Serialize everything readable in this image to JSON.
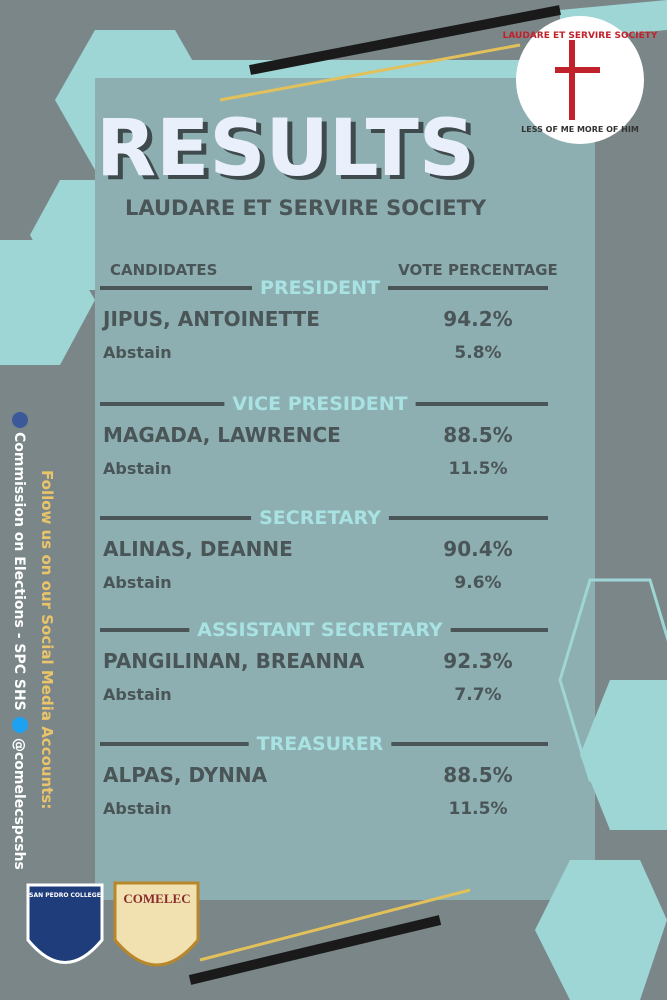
{
  "header": {
    "title": "RESULTS",
    "subtitle": "LAUDARE ET SERVIRE SOCIETY"
  },
  "table": {
    "columns": [
      "CANDIDATES",
      "VOTE PERCENTAGE"
    ],
    "positions": [
      {
        "title": "PRESIDENT",
        "rows": [
          [
            "JIPUS, ANTOINETTE",
            "94.2%"
          ],
          [
            "Abstain",
            "5.8%"
          ]
        ]
      },
      {
        "title": "VICE PRESIDENT",
        "rows": [
          [
            "MAGADA, LAWRENCE",
            "88.5%"
          ],
          [
            "Abstain",
            "11.5%"
          ]
        ]
      },
      {
        "title": "SECRETARY",
        "rows": [
          [
            "ALINAS, DEANNE",
            "90.4%"
          ],
          [
            "Abstain",
            "9.6%"
          ]
        ]
      },
      {
        "title": "ASSISTANT SECRETARY",
        "rows": [
          [
            "PANGILINAN, BREANNA",
            "92.3%"
          ],
          [
            "Abstain",
            "7.7%"
          ]
        ]
      },
      {
        "title": "TREASURER",
        "rows": [
          [
            "ALPAS, DYNNA",
            "88.5%"
          ],
          [
            "Abstain",
            "11.5%"
          ]
        ]
      }
    ]
  },
  "social": {
    "heading": "Follow us on our Social Media Accounts:",
    "facebook": "Commission on Elections - SPC SHS",
    "twitter": "@comelecspcshs"
  },
  "logos": {
    "society_top": "LAUDARE ET SERVIRE SOCIETY",
    "society_bottom": "LESS OF ME MORE OF HIM",
    "college": "SAN PEDRO COLLEGE",
    "comelec": "COMELEC"
  }
}
